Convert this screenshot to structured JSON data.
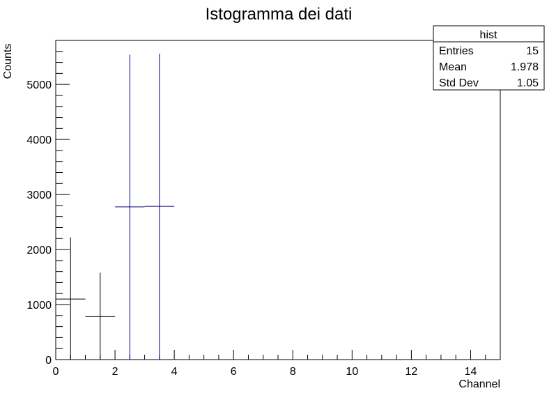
{
  "chart_data": {
    "type": "histogram",
    "title": "Istogramma dei dati",
    "xlabel": "Channel",
    "ylabel": "Counts",
    "xlim": [
      0,
      15
    ],
    "ylim": [
      0,
      5800
    ],
    "x_ticks": [
      0,
      2,
      4,
      6,
      8,
      10,
      12,
      14
    ],
    "y_ticks": [
      0,
      1000,
      2000,
      3000,
      4000,
      5000
    ],
    "grid": false,
    "bins": [
      {
        "x_low": 0,
        "x_high": 1,
        "value": 1100,
        "err_low": 0,
        "err_high": 2220,
        "color": "#000000"
      },
      {
        "x_low": 1,
        "x_high": 2,
        "value": 780,
        "err_low": 0,
        "err_high": 1580,
        "color": "#000000"
      },
      {
        "x_low": 2,
        "x_high": 3,
        "value": 2775,
        "err_low": 0,
        "err_high": 5540,
        "color": "#00007f"
      },
      {
        "x_low": 3,
        "x_high": 4,
        "value": 2785,
        "err_low": 0,
        "err_high": 5560,
        "color": "#00007f"
      }
    ],
    "stats_box": {
      "title": "hist",
      "placement": "top-right",
      "rows": [
        {
          "label": "Entries",
          "value": "15"
        },
        {
          "label": "Mean",
          "value": "1.978"
        },
        {
          "label": "Std Dev",
          "value": "1.05"
        }
      ]
    }
  }
}
